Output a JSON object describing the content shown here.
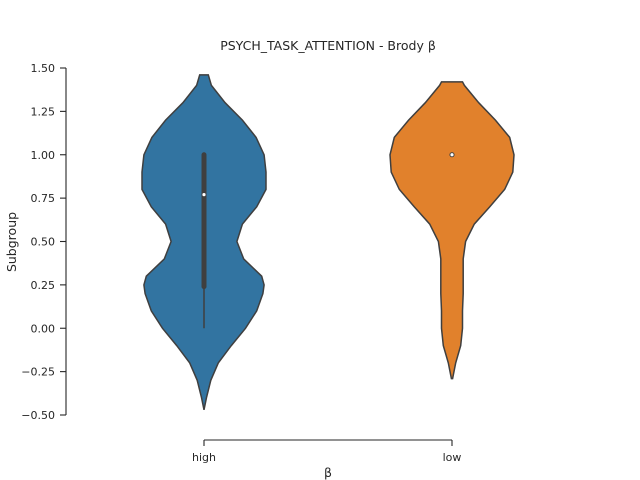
{
  "chart_data": {
    "type": "violin",
    "title": "PSYCH_TASK_ATTENTION - Brody β",
    "xlabel": "β",
    "ylabel": "Subgroup",
    "categories": [
      "high",
      "low"
    ],
    "ylim": [
      -0.5,
      1.5
    ],
    "yticks": [
      -0.5,
      -0.25,
      0.0,
      0.25,
      0.5,
      0.75,
      1.0,
      1.25,
      1.5
    ],
    "ytick_labels": [
      "−0.50",
      "−0.25",
      "0.00",
      "0.25",
      "0.50",
      "0.75",
      "1.00",
      "1.25",
      "1.50"
    ],
    "grid": false,
    "series": [
      {
        "category": "high",
        "color": "#3274a1",
        "range": [
          -0.47,
          1.46
        ],
        "median": 0.77,
        "q1": 0.24,
        "q3": 1.0,
        "whisker_low": 0.0,
        "whisker_high": 1.0,
        "density": [
          [
            -0.47,
            0.0
          ],
          [
            -0.4,
            0.04
          ],
          [
            -0.3,
            0.11
          ],
          [
            -0.2,
            0.23
          ],
          [
            -0.1,
            0.44
          ],
          [
            0.0,
            0.67
          ],
          [
            0.1,
            0.85
          ],
          [
            0.2,
            0.95
          ],
          [
            0.25,
            0.97
          ],
          [
            0.3,
            0.93
          ],
          [
            0.4,
            0.64
          ],
          [
            0.5,
            0.53
          ],
          [
            0.6,
            0.62
          ],
          [
            0.7,
            0.85
          ],
          [
            0.8,
            1.0
          ],
          [
            0.9,
            1.0
          ],
          [
            1.0,
            0.97
          ],
          [
            1.1,
            0.84
          ],
          [
            1.2,
            0.62
          ],
          [
            1.3,
            0.34
          ],
          [
            1.4,
            0.12
          ],
          [
            1.46,
            0.07
          ]
        ]
      },
      {
        "category": "low",
        "color": "#e1812c",
        "range": [
          -0.29,
          1.42
        ],
        "median": 1.0,
        "q1": 1.0,
        "q3": 1.0,
        "whisker_low": 1.0,
        "whisker_high": 1.0,
        "density": [
          [
            -0.29,
            0.01
          ],
          [
            -0.2,
            0.06
          ],
          [
            -0.1,
            0.14
          ],
          [
            0.0,
            0.17
          ],
          [
            0.1,
            0.17
          ],
          [
            0.2,
            0.18
          ],
          [
            0.3,
            0.18
          ],
          [
            0.4,
            0.18
          ],
          [
            0.5,
            0.22
          ],
          [
            0.6,
            0.36
          ],
          [
            0.7,
            0.61
          ],
          [
            0.8,
            0.85
          ],
          [
            0.9,
            0.98
          ],
          [
            1.0,
            1.0
          ],
          [
            1.1,
            0.93
          ],
          [
            1.2,
            0.7
          ],
          [
            1.3,
            0.43
          ],
          [
            1.4,
            0.2
          ],
          [
            1.42,
            0.17
          ]
        ]
      }
    ]
  }
}
